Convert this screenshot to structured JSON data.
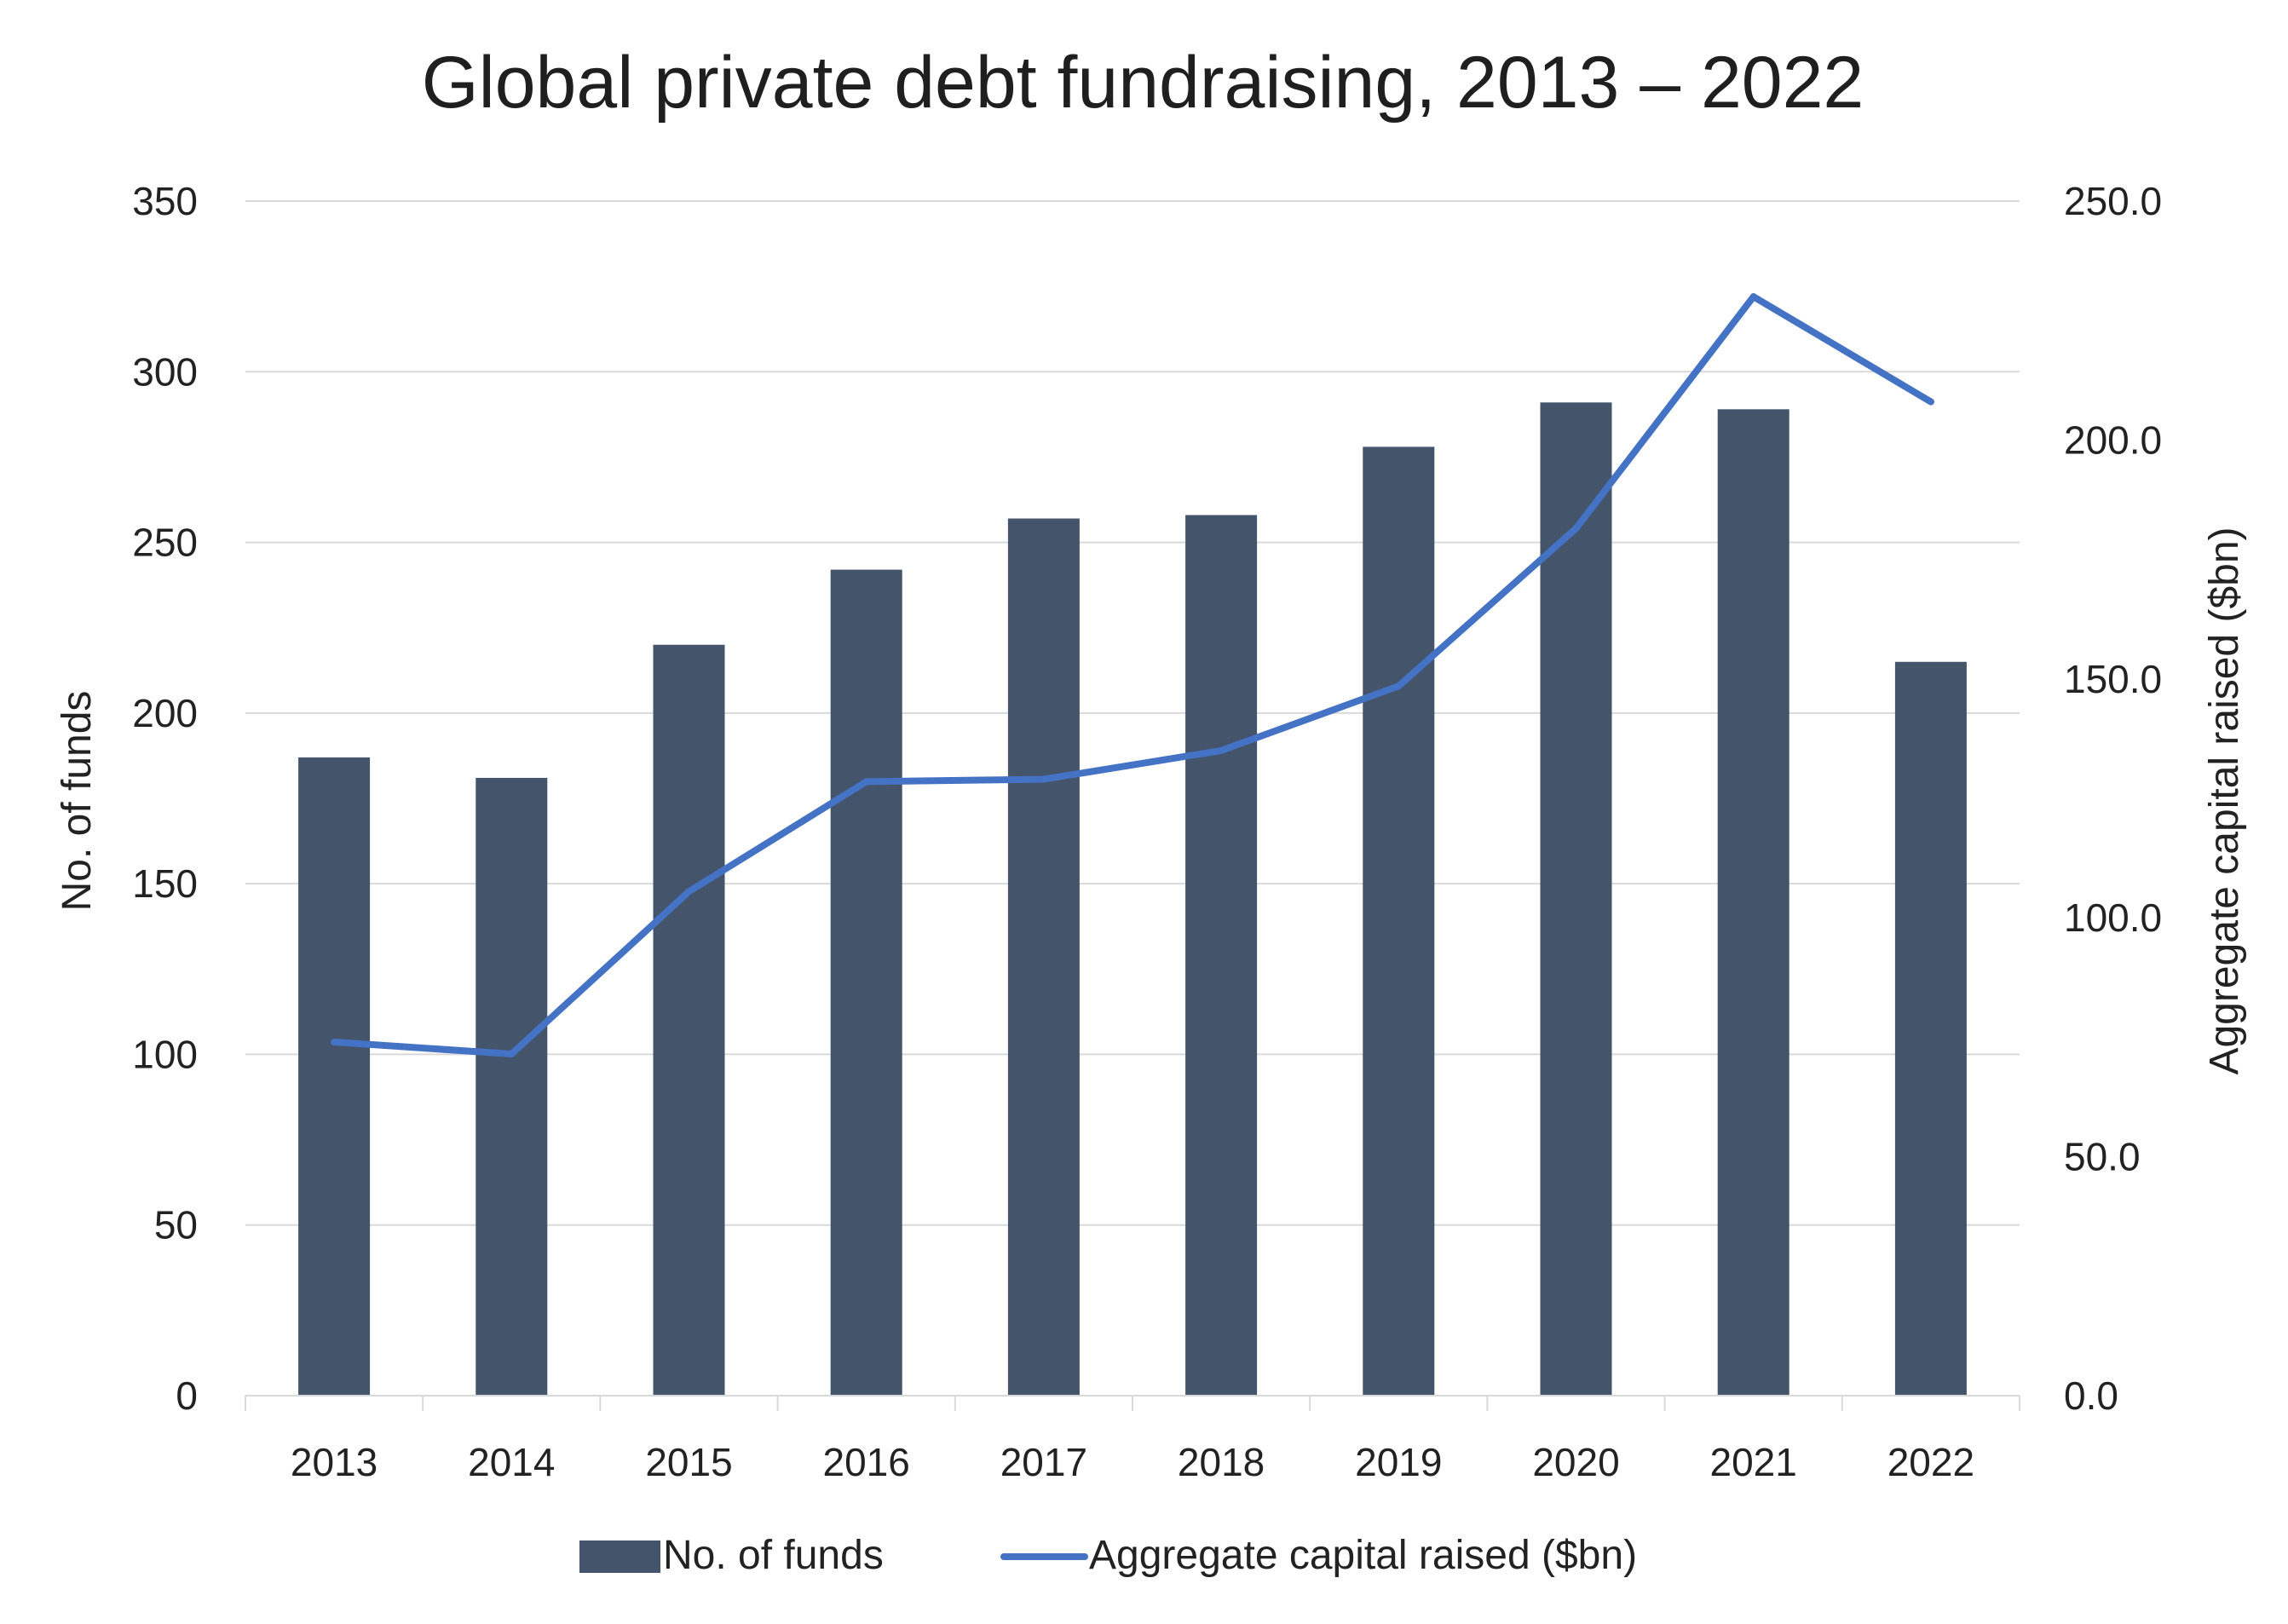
{
  "chart_data": {
    "type": "bar",
    "title": "Global private debt fundraising, 2013 – 2022",
    "categories": [
      "2013",
      "2014",
      "2015",
      "2016",
      "2017",
      "2018",
      "2019",
      "2020",
      "2021",
      "2022"
    ],
    "series": [
      {
        "name": "No. of funds",
        "type": "bar",
        "axis": "left",
        "color": "#44546a",
        "values": [
          187,
          181,
          220,
          242,
          257,
          258,
          278,
          291,
          289,
          215
        ]
      },
      {
        "name": "Aggregate capital raised ($bn)",
        "type": "line",
        "axis": "right",
        "color": "#4472c4",
        "values": [
          74.0,
          71.5,
          105.5,
          128.5,
          129.0,
          135.0,
          148.5,
          181.5,
          230.0,
          208.0
        ]
      }
    ],
    "ylabel": "No. of funds",
    "ylim": [
      0,
      350
    ],
    "yticks": [
      "0",
      "50",
      "100",
      "150",
      "200",
      "250",
      "300",
      "350"
    ],
    "y2label": "Aggregate capital raised ($bn)",
    "y2lim": [
      0,
      250
    ],
    "y2ticks": [
      "0.0",
      "50.0",
      "100.0",
      "150.0",
      "200.0",
      "250.0"
    ],
    "grid": true,
    "legend": "bottom"
  }
}
